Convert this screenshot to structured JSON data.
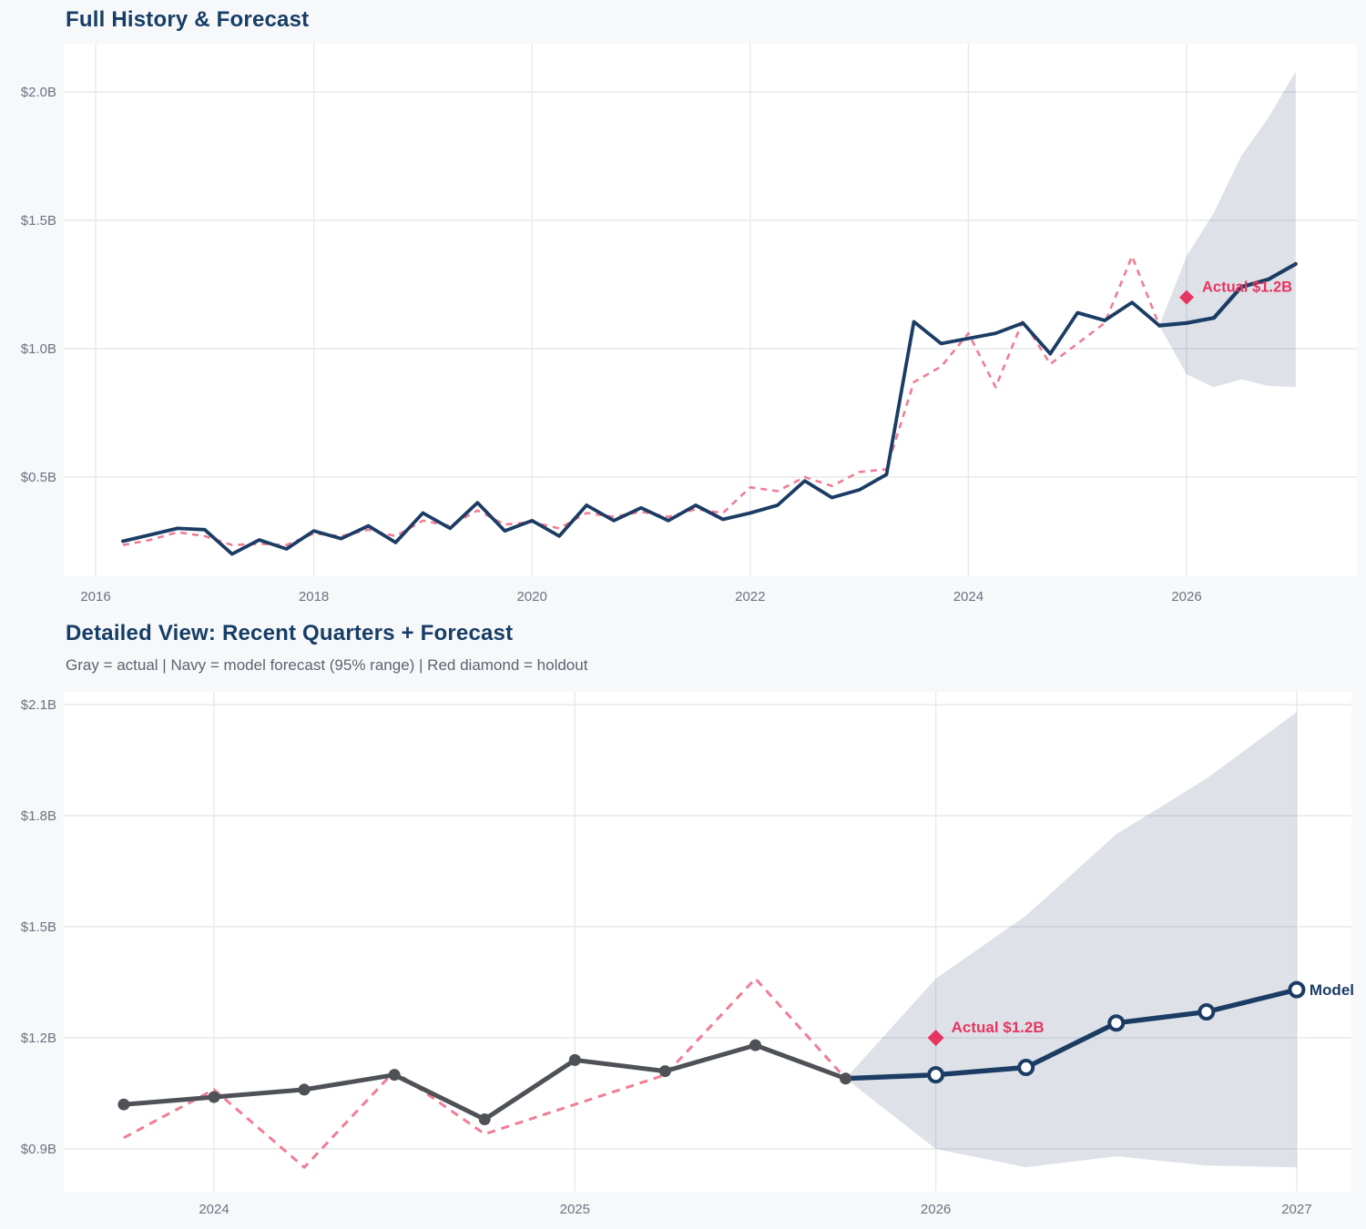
{
  "palette": {
    "page_bg": "#f7f8fa",
    "plot_bg": "#ffffff",
    "grid": "#e6e8ec",
    "navy": "#1b3c64",
    "pink": "#f07d94",
    "red": "#e63560",
    "gray_line": "#4e5156",
    "band_fill": "rgba(73,96,128,0.18)",
    "title": "#163e66",
    "subtitle": "#5c6470",
    "tick_text": "#6b7280"
  },
  "chart_data": [
    {
      "id": "full-history",
      "type": "line",
      "title": "Full History & Forecast",
      "xlabel": "",
      "ylabel": "",
      "xlim": [
        2015.71,
        2027.56
      ],
      "ylim": [
        0.11,
        2.19
      ],
      "grid": true,
      "legend_position": "none",
      "x_ticks": [
        {
          "label": "2016",
          "value": 2016
        },
        {
          "label": "2018",
          "value": 2018
        },
        {
          "label": "2020",
          "value": 2020
        },
        {
          "label": "2022",
          "value": 2022
        },
        {
          "label": "2024",
          "value": 2024
        },
        {
          "label": "2026",
          "value": 2026
        }
      ],
      "y_ticks": [
        {
          "label": "$2.0B",
          "value": 2.0
        },
        {
          "label": "$1.5B",
          "value": 1.5
        },
        {
          "label": "$1.0B",
          "value": 1.0
        },
        {
          "label": "$0.5B",
          "value": 0.5
        }
      ],
      "series": {
        "actual": {
          "name": "actual",
          "x": [
            2016.25,
            2016.5,
            2016.75,
            2017.0,
            2017.25,
            2017.5,
            2017.75,
            2018.0,
            2018.25,
            2018.5,
            2018.75,
            2019.0,
            2019.25,
            2019.5,
            2019.75,
            2020.0,
            2020.25,
            2020.5,
            2020.75,
            2021.0,
            2021.25,
            2021.5,
            2021.75,
            2022.0,
            2022.25,
            2022.5,
            2022.75,
            2023.0,
            2023.25,
            2023.5,
            2023.75,
            2024.0,
            2024.25,
            2024.5,
            2024.75,
            2025.0,
            2025.25,
            2025.5,
            2025.75
          ],
          "y": [
            0.25,
            0.275,
            0.3,
            0.295,
            0.2,
            0.255,
            0.22,
            0.29,
            0.26,
            0.31,
            0.245,
            0.36,
            0.3,
            0.4,
            0.29,
            0.33,
            0.27,
            0.39,
            0.33,
            0.38,
            0.33,
            0.39,
            0.335,
            0.36,
            0.39,
            0.485,
            0.42,
            0.45,
            0.51,
            1.105,
            1.02,
            1.04,
            1.06,
            1.1,
            0.98,
            1.14,
            1.11,
            1.18,
            1.09
          ]
        },
        "fit": {
          "name": "model in-sample fit",
          "x": [
            2016.25,
            2016.5,
            2016.75,
            2017.0,
            2017.25,
            2017.5,
            2017.75,
            2018.0,
            2018.25,
            2018.5,
            2018.75,
            2019.0,
            2019.25,
            2019.5,
            2019.75,
            2020.0,
            2020.25,
            2020.5,
            2020.75,
            2021.0,
            2021.25,
            2021.5,
            2021.75,
            2022.0,
            2022.25,
            2022.5,
            2022.75,
            2023.0,
            2023.25,
            2023.5,
            2023.75,
            2024.0,
            2024.25,
            2024.5,
            2024.75,
            2025.0,
            2025.25,
            2025.5,
            2025.75
          ],
          "y": [
            0.235,
            0.255,
            0.285,
            0.27,
            0.235,
            0.24,
            0.235,
            0.28,
            0.27,
            0.295,
            0.27,
            0.33,
            0.31,
            0.37,
            0.315,
            0.325,
            0.3,
            0.36,
            0.345,
            0.365,
            0.345,
            0.375,
            0.36,
            0.46,
            0.445,
            0.5,
            0.465,
            0.52,
            0.53,
            0.87,
            0.93,
            1.06,
            0.85,
            1.11,
            0.94,
            1.02,
            1.1,
            1.36,
            1.09
          ]
        },
        "forecast": {
          "name": "model forecast",
          "x": [
            2025.75,
            2026.0,
            2026.25,
            2026.5,
            2026.75,
            2027.0
          ],
          "y": [
            1.09,
            1.1,
            1.12,
            1.24,
            1.27,
            1.33
          ]
        },
        "band": {
          "name": "95% range",
          "x": [
            2025.75,
            2026.0,
            2026.25,
            2026.5,
            2026.75,
            2027.0
          ],
          "upper": [
            1.09,
            1.36,
            1.53,
            1.75,
            1.9,
            2.08
          ],
          "lower": [
            1.09,
            0.9,
            0.85,
            0.88,
            0.855,
            0.85
          ]
        }
      },
      "holdout": {
        "x": 2026.0,
        "y": 1.2,
        "label": "Actual $1.2B"
      }
    },
    {
      "id": "detailed-view",
      "type": "line",
      "title": "Detailed View: Recent Quarters + Forecast",
      "subtitle": "Gray = actual  |  Navy = model forecast (95% range)  |  Red diamond = holdout",
      "xlabel": "",
      "ylabel": "",
      "xlim": [
        2023.58,
        2027.15
      ],
      "ylim": [
        0.78,
        2.13
      ],
      "grid": true,
      "legend_position": "none",
      "x_ticks": [
        {
          "label": "2024",
          "value": 2024
        },
        {
          "label": "2025",
          "value": 2025
        },
        {
          "label": "2026",
          "value": 2026
        },
        {
          "label": "2027",
          "value": 2027
        }
      ],
      "y_ticks": [
        {
          "label": "$2.1B",
          "value": 2.1
        },
        {
          "label": "$1.8B",
          "value": 1.8
        },
        {
          "label": "$1.5B",
          "value": 1.5
        },
        {
          "label": "$1.2B",
          "value": 1.2
        },
        {
          "label": "$0.9B",
          "value": 0.9
        }
      ],
      "series": {
        "actual": {
          "name": "actual",
          "x": [
            2023.75,
            2024.0,
            2024.25,
            2024.5,
            2024.75,
            2025.0,
            2025.25,
            2025.5,
            2025.75
          ],
          "y": [
            1.02,
            1.04,
            1.06,
            1.1,
            0.98,
            1.14,
            1.11,
            1.18,
            1.09
          ]
        },
        "fit": {
          "name": "model in-sample fit",
          "x": [
            2023.75,
            2024.0,
            2024.25,
            2024.5,
            2024.75,
            2025.0,
            2025.25,
            2025.5,
            2025.75
          ],
          "y": [
            0.93,
            1.06,
            0.85,
            1.11,
            0.94,
            1.02,
            1.1,
            1.36,
            1.09
          ]
        },
        "forecast": {
          "name": "model forecast",
          "x": [
            2025.75,
            2026.0,
            2026.25,
            2026.5,
            2026.75,
            2027.0
          ],
          "y": [
            1.09,
            1.1,
            1.12,
            1.24,
            1.27,
            1.33
          ]
        },
        "band": {
          "name": "95% range",
          "x": [
            2025.75,
            2026.0,
            2026.25,
            2026.5,
            2026.75,
            2027.0
          ],
          "upper": [
            1.09,
            1.36,
            1.53,
            1.75,
            1.9,
            2.08
          ],
          "lower": [
            1.09,
            0.9,
            0.85,
            0.88,
            0.855,
            0.85
          ]
        }
      },
      "holdout": {
        "x": 2026.0,
        "y": 1.2,
        "label": "Actual $1.2B"
      },
      "model_label": "Model"
    }
  ]
}
